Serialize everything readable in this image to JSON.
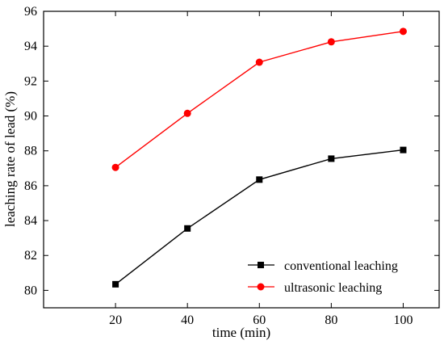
{
  "chart_data": {
    "type": "line",
    "title": "",
    "xlabel": "time (min)",
    "ylabel": "leaching rate of lead (%)",
    "x": [
      20,
      40,
      60,
      80,
      100
    ],
    "xlim": [
      0,
      110
    ],
    "ylim": [
      79,
      96
    ],
    "xticks": [
      20,
      40,
      60,
      80,
      100
    ],
    "yticks": [
      80,
      82,
      84,
      86,
      88,
      90,
      92,
      94,
      96
    ],
    "grid": false,
    "legend_position": "bottom-right",
    "series": [
      {
        "name": "conventional leaching",
        "values": [
          80.35,
          83.55,
          86.35,
          87.55,
          88.05
        ],
        "color": "#000000",
        "marker": "square"
      },
      {
        "name": "ultrasonic leaching",
        "values": [
          87.05,
          90.15,
          93.08,
          94.25,
          94.85
        ],
        "color": "#ff0000",
        "marker": "circle"
      }
    ]
  }
}
